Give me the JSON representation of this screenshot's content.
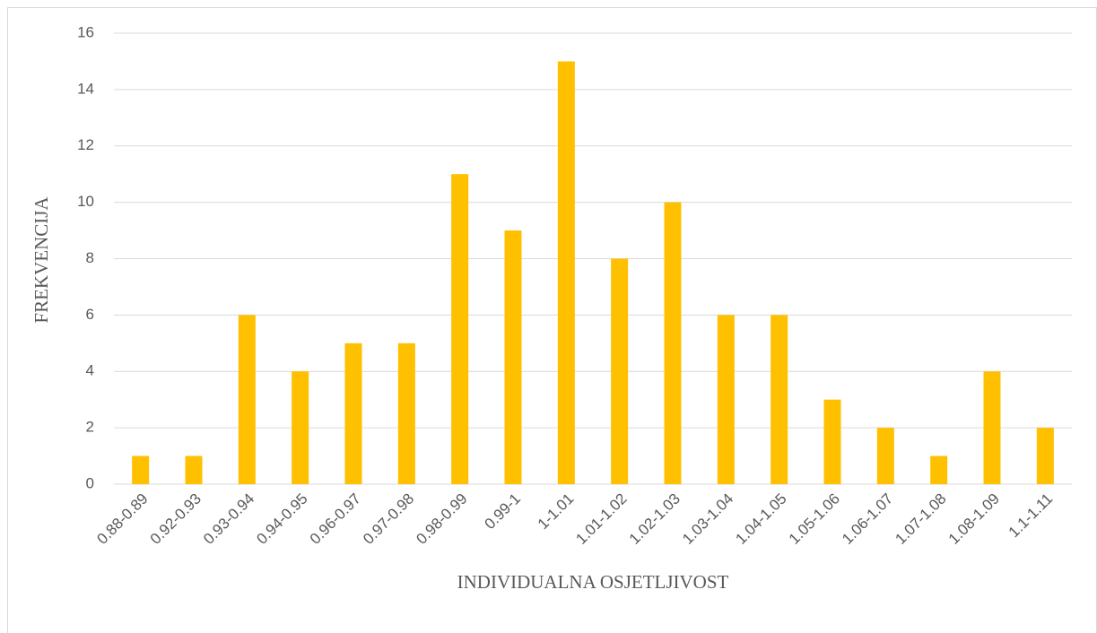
{
  "chart_data": {
    "type": "bar",
    "x_label": "INDIVIDUALNA OSJETLJIVOST",
    "y_label": "FREKVENCIJA",
    "categories": [
      "0.88-0.89",
      "0.92-0.93",
      "0.93-0.94",
      "0.94-0.95",
      "0.96-0.97",
      "0.97-0.98",
      "0.98-0.99",
      "0.99-1",
      "1-1.01",
      "1.01-1.02",
      "1.02-1.03",
      "1.03-1.04",
      "1.04-1.05",
      "1.05-1.06",
      "1.06-1.07",
      "1.07-1.08",
      "1.08-1.09",
      "1.1-1.11"
    ],
    "values": [
      1,
      1,
      6,
      4,
      5,
      5,
      11,
      9,
      15,
      8,
      10,
      6,
      6,
      3,
      2,
      1,
      4,
      2
    ],
    "color": "#ffc000",
    "ylim": [
      0,
      16
    ],
    "yticks": [
      0,
      2,
      4,
      6,
      8,
      10,
      12,
      14,
      16
    ],
    "grid": true
  }
}
